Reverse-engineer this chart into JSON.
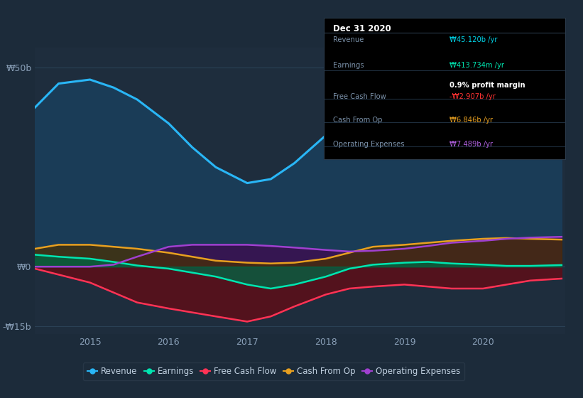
{
  "bg_color": "#1c2b3a",
  "plot_bg_color": "#1e2d3d",
  "title": "Dec 31 2020",
  "info_box": {
    "Revenue": {
      "label": "Revenue",
      "value": "₩45.120b /yr",
      "color": "#00d4e8"
    },
    "Earnings": {
      "label": "Earnings",
      "value": "₩413.734m /yr",
      "color": "#00e5b0",
      "note": "0.9% profit margin"
    },
    "Free Cash Flow": {
      "label": "Free Cash Flow",
      "value": "-₩2.907b /yr",
      "color": "#ff3333"
    },
    "Cash From Op": {
      "label": "Cash From Op",
      "value": "₩6.846b /yr",
      "color": "#e8a020"
    },
    "Operating Expenses": {
      "label": "Operating Expenses",
      "value": "₩7.489b /yr",
      "color": "#b060e0"
    }
  },
  "xlim": [
    2014.3,
    2021.05
  ],
  "ylim": [
    -17,
    55
  ],
  "yticks": [
    50,
    0,
    -15
  ],
  "ytick_labels": [
    "₩50b",
    "₩0",
    "-₩15b"
  ],
  "xticks": [
    2015,
    2016,
    2017,
    2018,
    2019,
    2020
  ],
  "xtick_labels": [
    "2015",
    "2016",
    "2017",
    "2018",
    "2019",
    "2020"
  ],
  "series_order": [
    "Revenue",
    "FreeCashFlow",
    "OperatingExpenses",
    "CashFromOp",
    "Earnings"
  ],
  "Revenue": {
    "color": "#29b6f6",
    "fill": "#1a3f5c",
    "x": [
      2014.3,
      2014.6,
      2015.0,
      2015.3,
      2015.6,
      2016.0,
      2016.3,
      2016.6,
      2017.0,
      2017.3,
      2017.6,
      2018.0,
      2018.3,
      2018.6,
      2019.0,
      2019.3,
      2019.6,
      2020.0,
      2020.3,
      2020.6,
      2021.0
    ],
    "y": [
      40,
      46,
      47,
      45,
      42,
      36,
      30,
      25,
      21,
      22,
      26,
      33,
      38,
      40,
      37,
      32,
      29,
      30,
      37,
      43,
      45
    ]
  },
  "Earnings": {
    "color": "#00e5b0",
    "fill": "#006644",
    "x": [
      2014.3,
      2014.6,
      2015.0,
      2015.3,
      2015.6,
      2016.0,
      2016.3,
      2016.6,
      2017.0,
      2017.3,
      2017.6,
      2018.0,
      2018.3,
      2018.6,
      2019.0,
      2019.3,
      2019.6,
      2020.0,
      2020.3,
      2020.6,
      2021.0
    ],
    "y": [
      3.0,
      2.5,
      2.0,
      1.2,
      0.3,
      -0.5,
      -1.5,
      -2.5,
      -4.5,
      -5.5,
      -4.5,
      -2.5,
      -0.5,
      0.5,
      1.0,
      1.2,
      0.8,
      0.5,
      0.2,
      0.2,
      0.4
    ]
  },
  "FreeCashFlow": {
    "color": "#ff3355",
    "fill": "#5a0f1a",
    "x": [
      2014.3,
      2014.6,
      2015.0,
      2015.3,
      2015.6,
      2016.0,
      2016.3,
      2016.6,
      2017.0,
      2017.3,
      2017.6,
      2018.0,
      2018.3,
      2018.6,
      2019.0,
      2019.3,
      2019.6,
      2020.0,
      2020.3,
      2020.6,
      2021.0
    ],
    "y": [
      -0.5,
      -2.0,
      -4.0,
      -6.5,
      -9.0,
      -10.5,
      -11.5,
      -12.5,
      -13.8,
      -12.5,
      -10.0,
      -7.0,
      -5.5,
      -5.0,
      -4.5,
      -5.0,
      -5.5,
      -5.5,
      -4.5,
      -3.5,
      -3.0
    ]
  },
  "CashFromOp": {
    "color": "#e8a020",
    "fill": "#4a3000",
    "x": [
      2014.3,
      2014.6,
      2015.0,
      2015.3,
      2015.6,
      2016.0,
      2016.3,
      2016.6,
      2017.0,
      2017.3,
      2017.6,
      2018.0,
      2018.3,
      2018.6,
      2019.0,
      2019.3,
      2019.6,
      2020.0,
      2020.3,
      2020.6,
      2021.0
    ],
    "y": [
      4.5,
      5.5,
      5.5,
      5.0,
      4.5,
      3.5,
      2.5,
      1.5,
      1.0,
      0.8,
      1.0,
      2.0,
      3.5,
      5.0,
      5.5,
      6.0,
      6.5,
      7.0,
      7.2,
      7.0,
      6.8
    ]
  },
  "OperatingExpenses": {
    "color": "#a040d0",
    "fill": "#3a1050",
    "x": [
      2014.3,
      2014.6,
      2015.0,
      2015.3,
      2015.6,
      2016.0,
      2016.3,
      2016.6,
      2017.0,
      2017.3,
      2017.6,
      2018.0,
      2018.3,
      2018.6,
      2019.0,
      2019.3,
      2019.6,
      2020.0,
      2020.3,
      2020.6,
      2021.0
    ],
    "y": [
      0.0,
      0.0,
      0.0,
      0.5,
      2.5,
      5.0,
      5.5,
      5.5,
      5.5,
      5.2,
      4.8,
      4.2,
      3.8,
      4.0,
      4.5,
      5.2,
      6.0,
      6.5,
      7.0,
      7.3,
      7.5
    ]
  },
  "legend": [
    {
      "label": "Revenue",
      "color": "#29b6f6"
    },
    {
      "label": "Earnings",
      "color": "#00e5b0"
    },
    {
      "label": "Free Cash Flow",
      "color": "#ff3355"
    },
    {
      "label": "Cash From Op",
      "color": "#e8a020"
    },
    {
      "label": "Operating Expenses",
      "color": "#a040d0"
    }
  ]
}
